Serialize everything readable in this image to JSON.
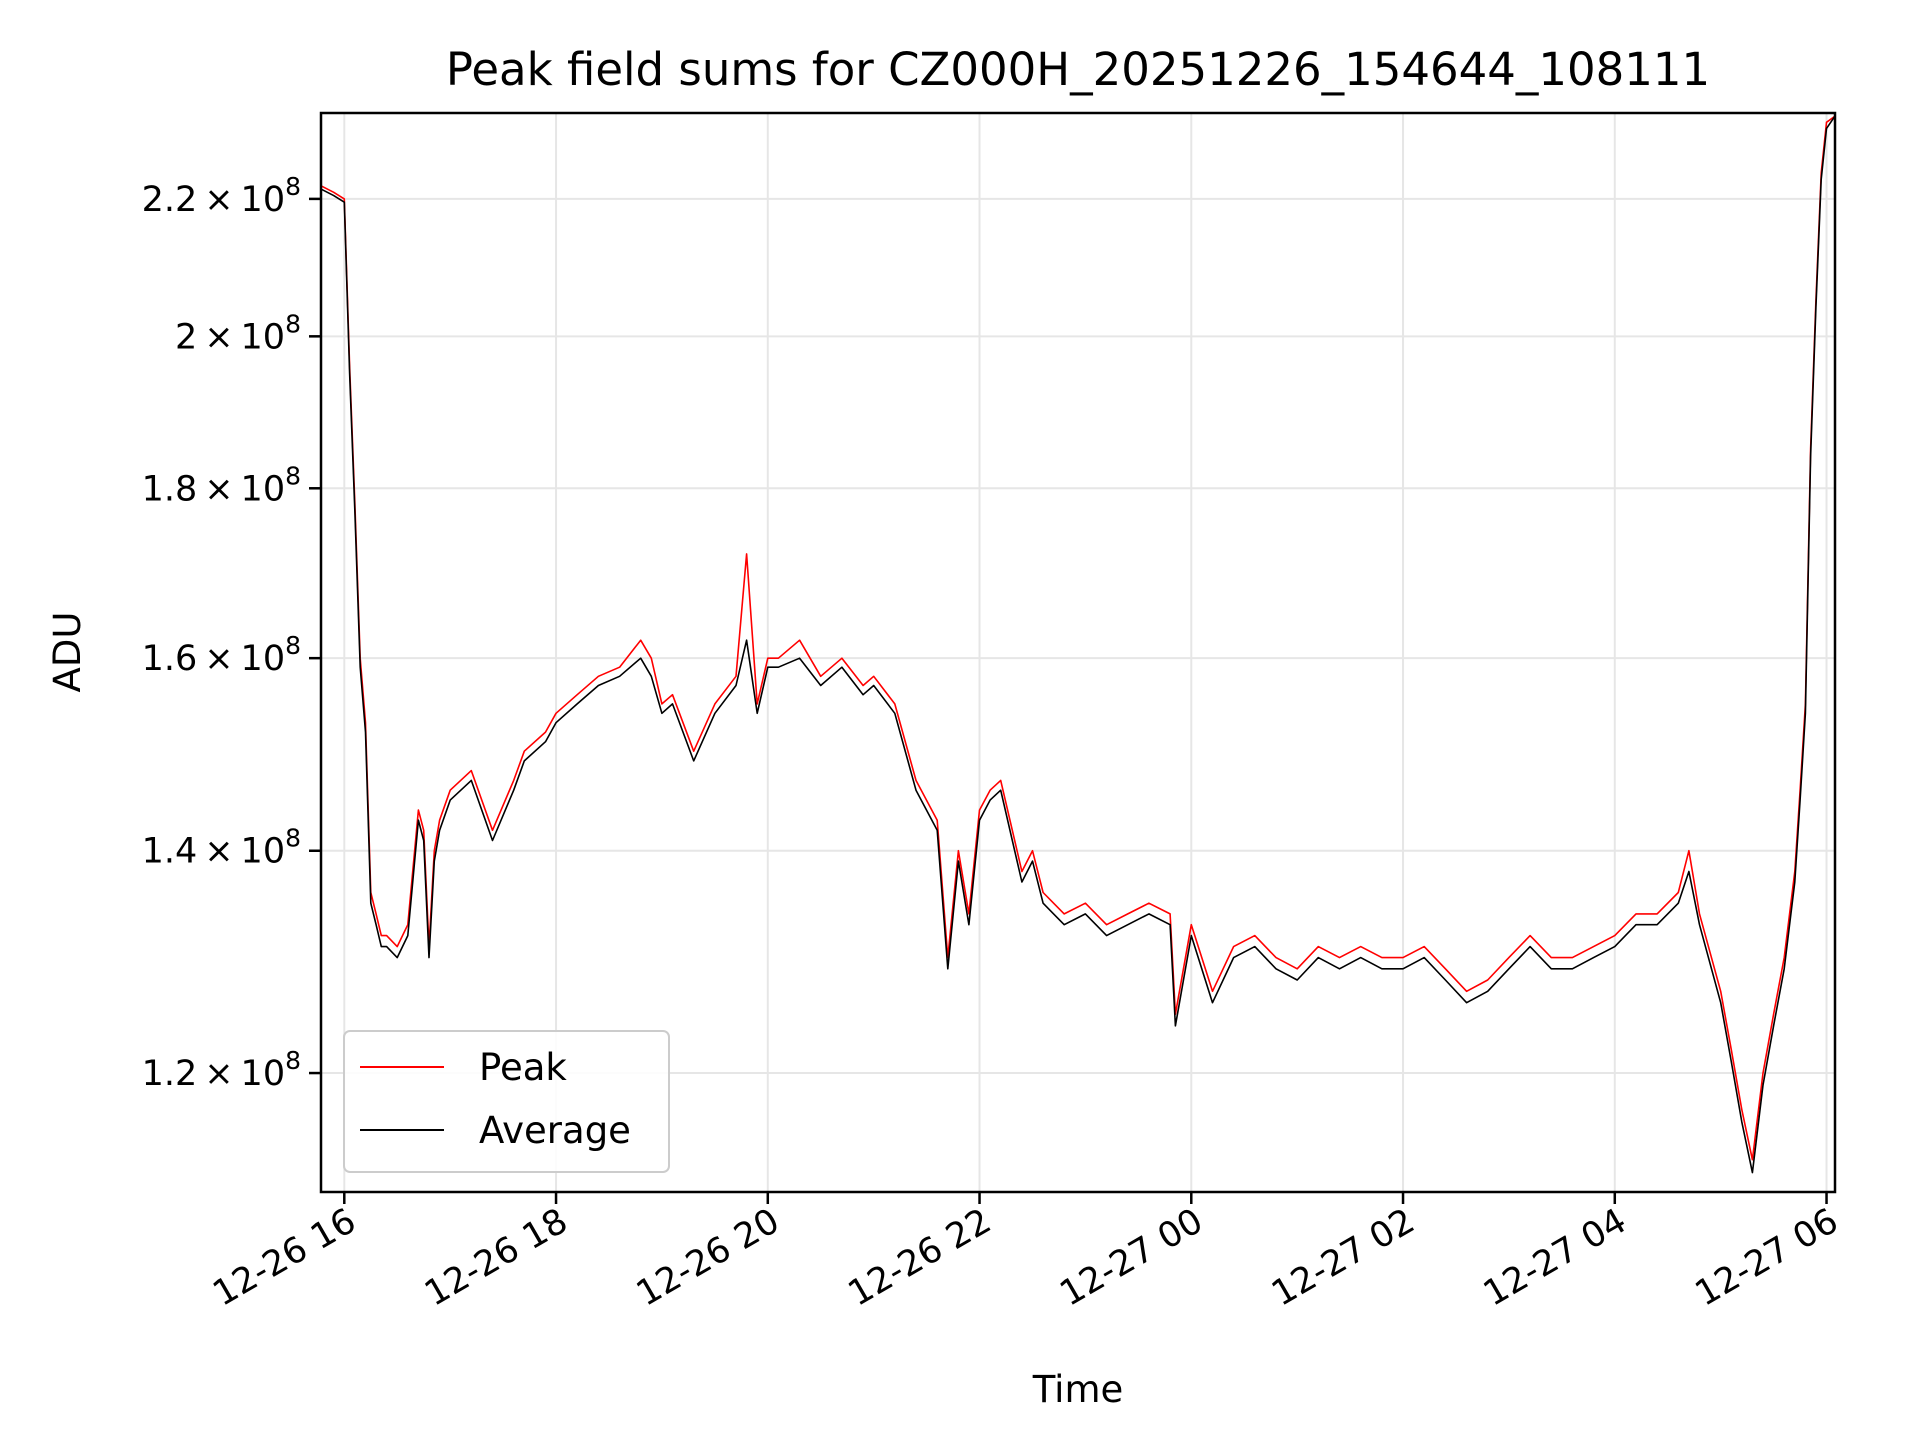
{
  "chart_data": {
    "type": "line",
    "title": "Peak field sums for CZ000H_20251226_154644_108111",
    "xlabel": "Time",
    "ylabel": "ADU",
    "x_unit": "hours since 2025-12-26 00:00",
    "xlim": [
      15.78,
      30.08
    ],
    "ylim": [
      110500000.0,
      233500000.0
    ],
    "y_scale": "log",
    "grid": true,
    "legend_position": "lower-left",
    "x_ticks": [
      {
        "value": 16,
        "label": "12-26 16"
      },
      {
        "value": 18,
        "label": "12-26 18"
      },
      {
        "value": 20,
        "label": "12-26 20"
      },
      {
        "value": 22,
        "label": "12-26 22"
      },
      {
        "value": 24,
        "label": "12-27 00"
      },
      {
        "value": 26,
        "label": "12-27 02"
      },
      {
        "value": 28,
        "label": "12-27 04"
      },
      {
        "value": 30,
        "label": "12-27 06"
      }
    ],
    "y_ticks": [
      {
        "value": 120000000.0,
        "mant": "1.2",
        "exp": "8"
      },
      {
        "value": 140000000.0,
        "mant": "1.4",
        "exp": "8"
      },
      {
        "value": 160000000.0,
        "mant": "1.6",
        "exp": "8"
      },
      {
        "value": 180000000.0,
        "mant": "1.8",
        "exp": "8"
      },
      {
        "value": 200000000.0,
        "mant": "2",
        "exp": "8"
      },
      {
        "value": 220000000.0,
        "mant": "2.2",
        "exp": "8"
      }
    ],
    "series": [
      {
        "name": "Peak",
        "color": "#ff0000",
        "x": [
          15.78,
          15.9,
          16.0,
          16.05,
          16.1,
          16.15,
          16.2,
          16.25,
          16.3,
          16.35,
          16.4,
          16.5,
          16.6,
          16.7,
          16.75,
          16.8,
          16.85,
          16.9,
          17.0,
          17.2,
          17.4,
          17.6,
          17.7,
          17.9,
          18.0,
          18.2,
          18.4,
          18.6,
          18.8,
          18.9,
          19.0,
          19.1,
          19.3,
          19.5,
          19.7,
          19.8,
          19.9,
          20.0,
          20.1,
          20.3,
          20.5,
          20.7,
          20.9,
          21.0,
          21.2,
          21.4,
          21.6,
          21.7,
          21.8,
          21.9,
          22.0,
          22.1,
          22.2,
          22.4,
          22.5,
          22.6,
          22.7,
          22.8,
          23.0,
          23.2,
          23.4,
          23.6,
          23.8,
          23.85,
          24.0,
          24.2,
          24.4,
          24.6,
          24.8,
          25.0,
          25.2,
          25.4,
          25.6,
          25.8,
          26.0,
          26.2,
          26.4,
          26.6,
          26.8,
          27.0,
          27.2,
          27.4,
          27.6,
          27.8,
          28.0,
          28.2,
          28.4,
          28.6,
          28.7,
          28.8,
          29.0,
          29.1,
          29.2,
          29.3,
          29.4,
          29.5,
          29.6,
          29.7,
          29.75,
          29.8,
          29.85,
          29.9,
          29.95,
          30.0,
          30.08
        ],
        "y": [
          222000000.0,
          221000000.0,
          220000000.0,
          196000000.0,
          178000000.0,
          160000000.0,
          153000000.0,
          136000000.0,
          134000000.0,
          132000000.0,
          132000000.0,
          131000000.0,
          133000000.0,
          144000000.0,
          142000000.0,
          131000000.0,
          140000000.0,
          143000000.0,
          146000000.0,
          148000000.0,
          142000000.0,
          147000000.0,
          150000000.0,
          152000000.0,
          154000000.0,
          156000000.0,
          158000000.0,
          159000000.0,
          162000000.0,
          160000000.0,
          155000000.0,
          156000000.0,
          150000000.0,
          155000000.0,
          158000000.0,
          172000000.0,
          155000000.0,
          160000000.0,
          160000000.0,
          162000000.0,
          158000000.0,
          160000000.0,
          157000000.0,
          158000000.0,
          155000000.0,
          147000000.0,
          143000000.0,
          130000000.0,
          140000000.0,
          134000000.0,
          144000000.0,
          146000000.0,
          147000000.0,
          138000000.0,
          140000000.0,
          136000000.0,
          135000000.0,
          134000000.0,
          135000000.0,
          133000000.0,
          134000000.0,
          135000000.0,
          134000000.0,
          125000000.0,
          133000000.0,
          127000000.0,
          131000000.0,
          132000000.0,
          130000000.0,
          129000000.0,
          131000000.0,
          130000000.0,
          131000000.0,
          130000000.0,
          130000000.0,
          131000000.0,
          129000000.0,
          127000000.0,
          128000000.0,
          130000000.0,
          132000000.0,
          130000000.0,
          130000000.0,
          131000000.0,
          132000000.0,
          134000000.0,
          134000000.0,
          136000000.0,
          140000000.0,
          134000000.0,
          127000000.0,
          122000000.0,
          117000000.0,
          113000000.0,
          120000000.0,
          125000000.0,
          130000000.0,
          138000000.0,
          146000000.0,
          155000000.0,
          185000000.0,
          205000000.0,
          224000000.0,
          232000000.0,
          233000000.0
        ]
      },
      {
        "name": "Average",
        "color": "#000000",
        "x": [
          15.78,
          15.9,
          16.0,
          16.05,
          16.1,
          16.15,
          16.2,
          16.25,
          16.3,
          16.35,
          16.4,
          16.5,
          16.6,
          16.7,
          16.75,
          16.8,
          16.85,
          16.9,
          17.0,
          17.2,
          17.4,
          17.6,
          17.7,
          17.9,
          18.0,
          18.2,
          18.4,
          18.6,
          18.8,
          18.9,
          19.0,
          19.1,
          19.3,
          19.5,
          19.7,
          19.8,
          19.9,
          20.0,
          20.1,
          20.3,
          20.5,
          20.7,
          20.9,
          21.0,
          21.2,
          21.4,
          21.6,
          21.7,
          21.8,
          21.9,
          22.0,
          22.1,
          22.2,
          22.4,
          22.5,
          22.6,
          22.7,
          22.8,
          23.0,
          23.2,
          23.4,
          23.6,
          23.8,
          23.85,
          24.0,
          24.2,
          24.4,
          24.6,
          24.8,
          25.0,
          25.2,
          25.4,
          25.6,
          25.8,
          26.0,
          26.2,
          26.4,
          26.6,
          26.8,
          27.0,
          27.2,
          27.4,
          27.6,
          27.8,
          28.0,
          28.2,
          28.4,
          28.6,
          28.7,
          28.8,
          29.0,
          29.1,
          29.2,
          29.3,
          29.4,
          29.5,
          29.6,
          29.7,
          29.75,
          29.8,
          29.85,
          29.9,
          29.95,
          30.0,
          30.08
        ],
        "y": [
          221500000.0,
          220500000.0,
          219500000.0,
          195000000.0,
          177000000.0,
          159000000.0,
          152000000.0,
          135000000.0,
          133000000.0,
          131000000.0,
          131000000.0,
          130000000.0,
          132000000.0,
          143000000.0,
          141000000.0,
          130000000.0,
          139000000.0,
          142000000.0,
          145000000.0,
          147000000.0,
          141000000.0,
          146000000.0,
          149000000.0,
          151000000.0,
          153000000.0,
          155000000.0,
          157000000.0,
          158000000.0,
          160000000.0,
          158000000.0,
          154000000.0,
          155000000.0,
          149000000.0,
          154000000.0,
          157000000.0,
          162000000.0,
          154000000.0,
          159000000.0,
          159000000.0,
          160000000.0,
          157000000.0,
          159000000.0,
          156000000.0,
          157000000.0,
          154000000.0,
          146000000.0,
          142000000.0,
          129000000.0,
          139000000.0,
          133000000.0,
          143000000.0,
          145000000.0,
          146000000.0,
          137000000.0,
          139000000.0,
          135000000.0,
          134000000.0,
          133000000.0,
          134000000.0,
          132000000.0,
          133000000.0,
          134000000.0,
          133000000.0,
          124000000.0,
          132000000.0,
          126000000.0,
          130000000.0,
          131000000.0,
          129000000.0,
          128000000.0,
          130000000.0,
          129000000.0,
          130000000.0,
          129000000.0,
          129000000.0,
          130000000.0,
          128000000.0,
          126000000.0,
          127000000.0,
          129000000.0,
          131000000.0,
          129000000.0,
          129000000.0,
          130000000.0,
          131000000.0,
          133000000.0,
          133000000.0,
          135000000.0,
          138000000.0,
          133000000.0,
          126000000.0,
          121000000.0,
          116000000.0,
          112000000.0,
          119000000.0,
          124000000.0,
          129000000.0,
          137000000.0,
          145000000.0,
          154000000.0,
          184000000.0,
          204000000.0,
          223000000.0,
          231000000.0,
          233000000.0
        ]
      }
    ]
  }
}
